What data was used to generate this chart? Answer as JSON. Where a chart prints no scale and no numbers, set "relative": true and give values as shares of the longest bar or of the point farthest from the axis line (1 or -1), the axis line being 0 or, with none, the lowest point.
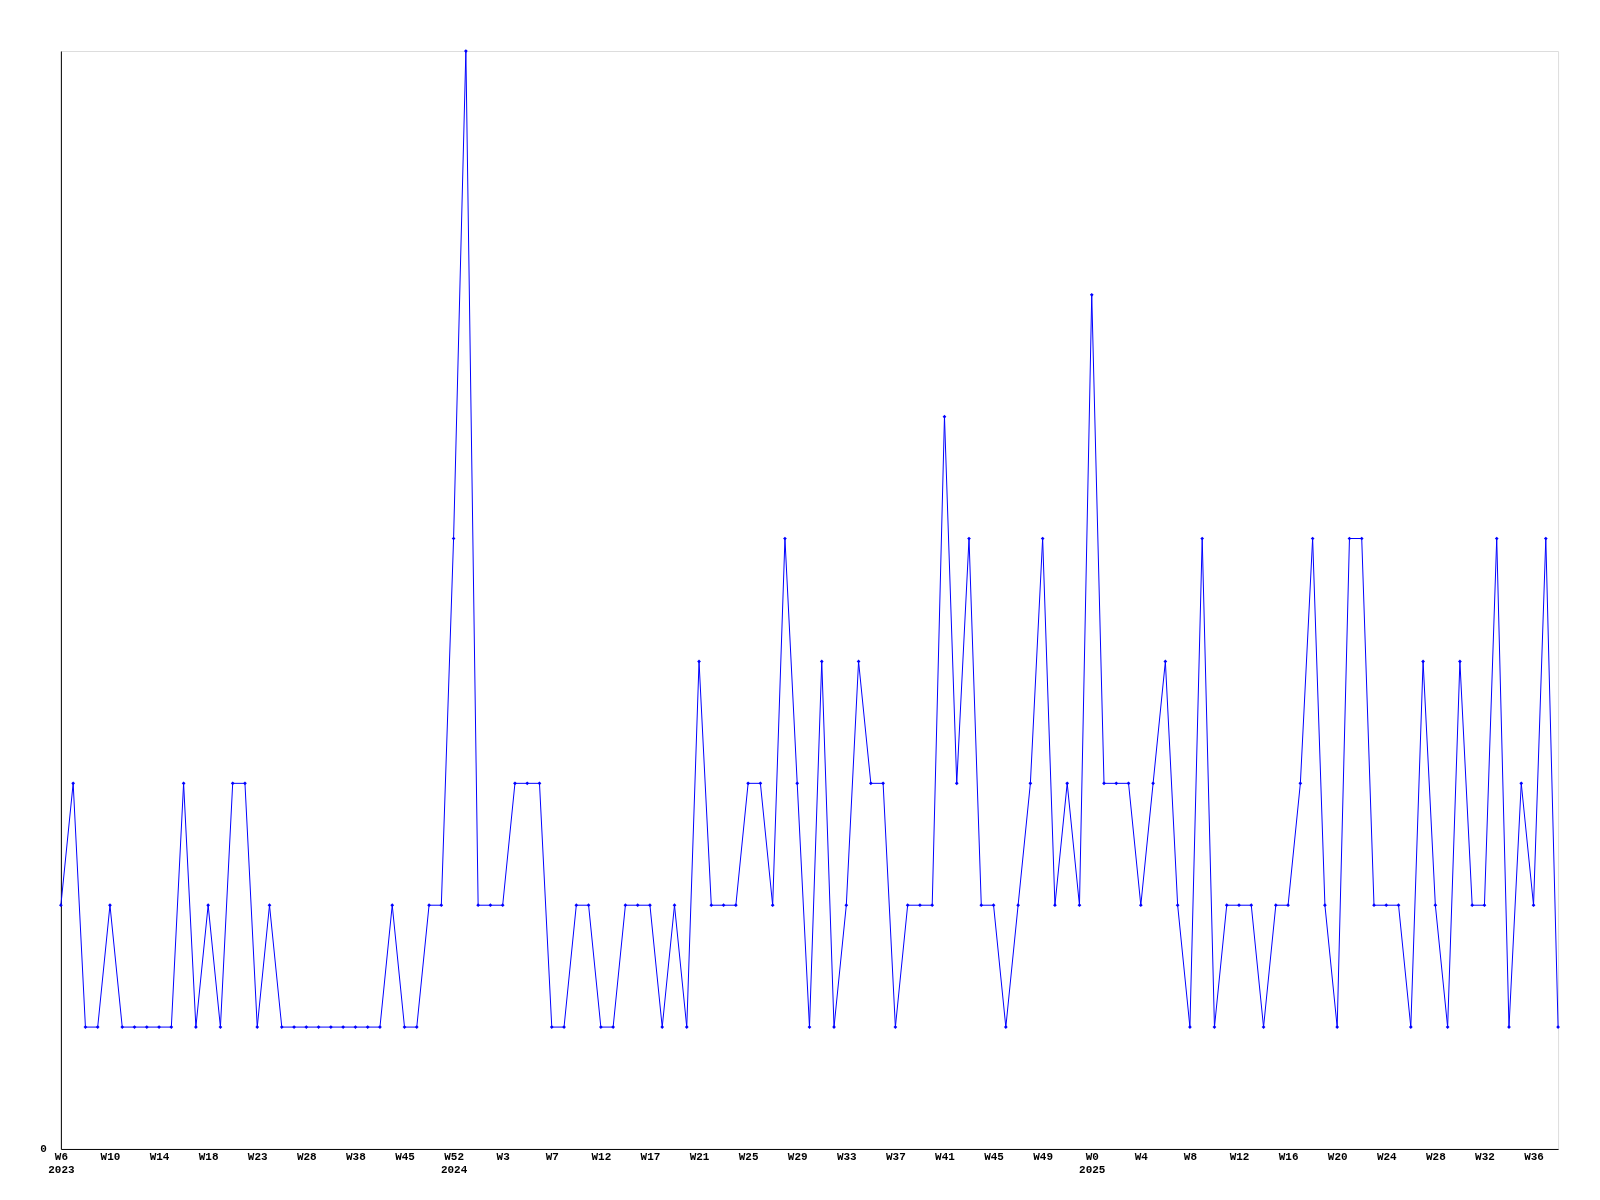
{
  "chart_data": {
    "type": "line",
    "relative": true,
    "marker": "diamond",
    "line_style": "solid",
    "grid": false,
    "annotations": [
      "0"
    ],
    "categories": [
      "W6\n2023",
      null,
      null,
      null,
      "W10",
      null,
      null,
      null,
      "W14",
      null,
      null,
      null,
      "W18",
      null,
      null,
      null,
      "W23",
      null,
      null,
      null,
      "W28",
      null,
      null,
      null,
      "W38",
      null,
      null,
      null,
      "W45",
      null,
      null,
      null,
      "W52\n2024",
      null,
      null,
      null,
      "W3",
      null,
      null,
      null,
      "W7",
      null,
      null,
      null,
      "W12",
      null,
      null,
      null,
      "W17",
      null,
      null,
      null,
      "W21",
      null,
      null,
      null,
      "W25",
      null,
      null,
      null,
      "W29",
      null,
      null,
      null,
      "W33",
      null,
      null,
      null,
      "W37",
      null,
      null,
      null,
      "W41",
      null,
      null,
      null,
      "W45",
      null,
      null,
      null,
      "W49",
      null,
      null,
      null,
      "W0\n2025",
      null,
      null,
      null,
      "W4",
      null,
      null,
      null,
      "W8",
      null,
      null,
      null,
      "W12",
      null,
      null,
      null,
      "W16",
      null,
      null,
      null,
      "W20",
      null,
      null,
      null,
      "W24",
      null,
      null,
      null,
      "W28",
      null,
      null,
      null,
      "W32",
      null,
      null,
      null,
      "W36",
      null,
      null
    ],
    "series": [
      {
        "color": "#0000ff",
        "values": [
          0.222,
          0.333,
          0.111,
          0.111,
          0.222,
          0.111,
          0.111,
          0.111,
          0.111,
          0.111,
          0.333,
          0.111,
          0.222,
          0.111,
          0.333,
          0.333,
          0.111,
          0.222,
          0.111,
          0.111,
          0.111,
          0.111,
          0.111,
          0.111,
          0.111,
          0.111,
          0.111,
          0.222,
          0.111,
          0.111,
          0.222,
          0.222,
          0.556,
          1,
          0.222,
          0.222,
          0.222,
          0.333,
          0.333,
          0.333,
          0.111,
          0.111,
          0.222,
          0.222,
          0.111,
          0.111,
          0.222,
          0.222,
          0.222,
          0.111,
          0.222,
          0.111,
          0.444,
          0.222,
          0.222,
          0.222,
          0.333,
          0.333,
          0.222,
          0.556,
          0.333,
          0.111,
          0.444,
          0.111,
          0.222,
          0.444,
          0.333,
          0.333,
          0.111,
          0.222,
          0.222,
          0.222,
          0.667,
          0.333,
          0.556,
          0.222,
          0.222,
          0.111,
          0.222,
          0.333,
          0.556,
          0.222,
          0.333,
          0.222,
          0.778,
          0.333,
          0.333,
          0.333,
          0.222,
          0.333,
          0.444,
          0.222,
          0.111,
          0.556,
          0.111,
          0.222,
          0.222,
          0.222,
          0.111,
          0.222,
          0.222,
          0.333,
          0.556,
          0.222,
          0.111,
          0.556,
          0.556,
          0.222,
          0.222,
          0.222,
          0.111,
          0.444,
          0.222,
          0.111,
          0.444,
          0.222,
          0.222,
          0.556,
          0.111,
          0.333,
          0.222,
          0.556,
          0.111
        ]
      }
    ]
  }
}
